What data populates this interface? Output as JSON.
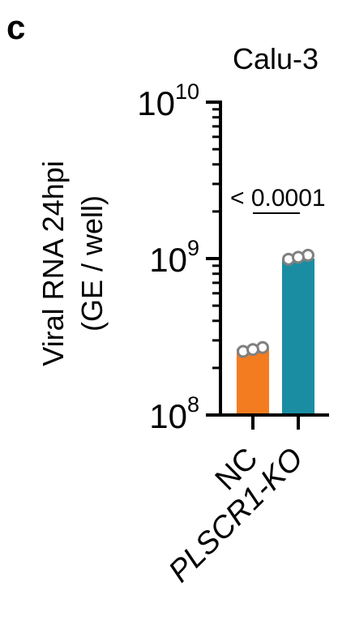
{
  "panel_label": "c",
  "chart_data": {
    "type": "bar",
    "title": "Calu-3",
    "ylabel_line1": "Viral RNA 24hpi",
    "ylabel_line2": "(GE / well)",
    "yscale": "log",
    "ylim": [
      100000000,
      10000000000
    ],
    "yticks": [
      {
        "value": 100000000,
        "base": "10",
        "exp": "8"
      },
      {
        "value": 1000000000,
        "base": "10",
        "exp": "9"
      },
      {
        "value": 10000000000,
        "base": "10",
        "exp": "10"
      }
    ],
    "categories": [
      "NC",
      "PLSCR1-KO"
    ],
    "values": [
      265000000,
      1000000000
    ],
    "points": [
      [
        255000000,
        270000000,
        262000000
      ],
      [
        990000000,
        1050000000,
        1020000000
      ]
    ],
    "colors": [
      "#F47C20",
      "#1A8DA3"
    ],
    "annotation": {
      "text": "< 0.0001",
      "between": [
        "NC",
        "PLSCR1-KO"
      ]
    }
  }
}
